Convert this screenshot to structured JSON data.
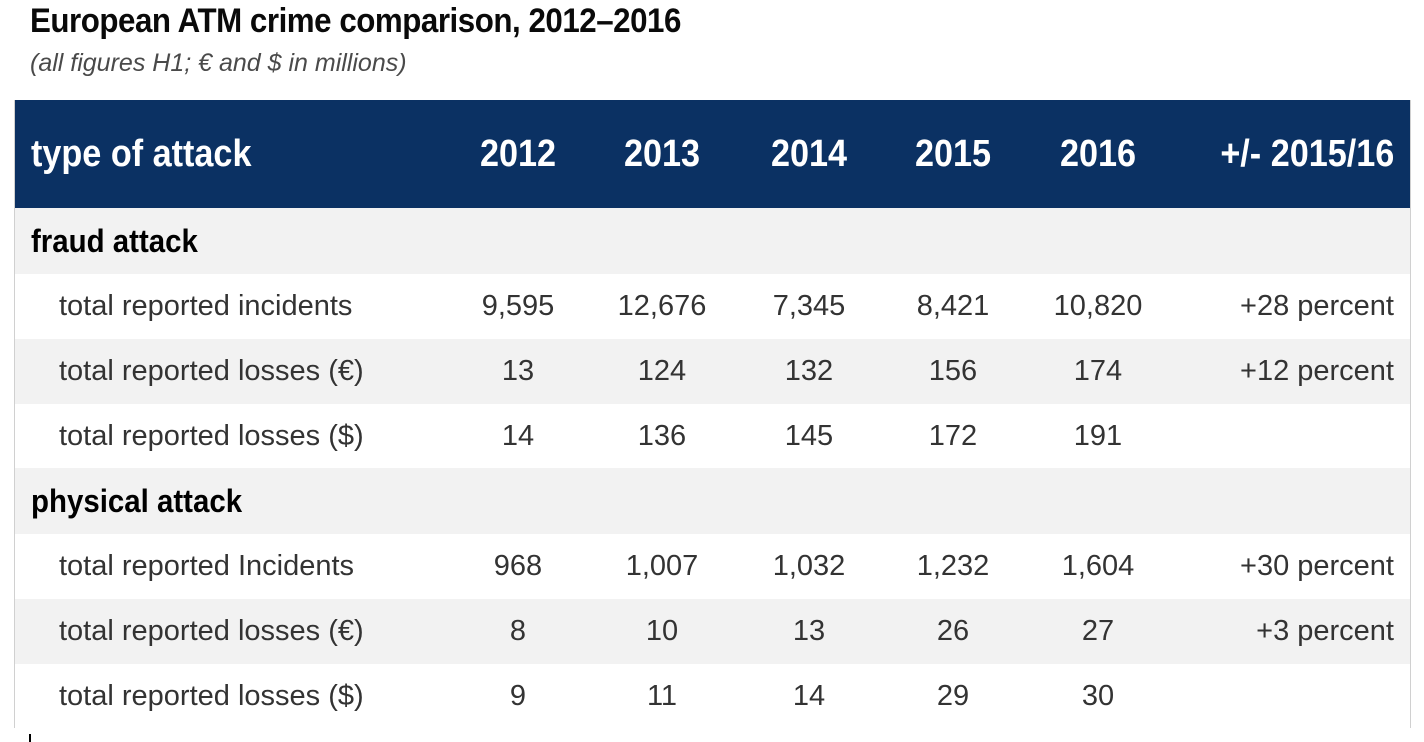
{
  "title": "European ATM crime comparison, 2012–2016",
  "subtitle": "(all figures H1; € and $ in millions)",
  "chart_data": {
    "type": "table",
    "columns": [
      "type of attack",
      "2012",
      "2013",
      "2014",
      "2015",
      "2016",
      "+/- 2015/16"
    ],
    "sections": [
      {
        "name": "fraud attack",
        "rows": [
          {
            "label": "total reported incidents",
            "values": [
              "9,595",
              "12,676",
              "7,345",
              "8,421",
              "10,820"
            ],
            "change": "+28 percent"
          },
          {
            "label": "total reported losses (€)",
            "values": [
              "13",
              "124",
              "132",
              "156",
              "174"
            ],
            "change": "+12 percent"
          },
          {
            "label": "total reported losses ($)",
            "values": [
              "14",
              "136",
              "145",
              "172",
              "191"
            ],
            "change": ""
          }
        ]
      },
      {
        "name": "physical attack",
        "rows": [
          {
            "label": "total reported Incidents",
            "values": [
              "968",
              "1,007",
              "1,032",
              "1,232",
              "1,604"
            ],
            "change": "+30 percent"
          },
          {
            "label": "total reported losses (€)",
            "values": [
              "8",
              "10",
              "13",
              "26",
              "27"
            ],
            "change": "+3 percent"
          },
          {
            "label": "total reported losses ($)",
            "values": [
              "9",
              "11",
              "14",
              "29",
              "30"
            ],
            "change": ""
          }
        ]
      }
    ]
  }
}
